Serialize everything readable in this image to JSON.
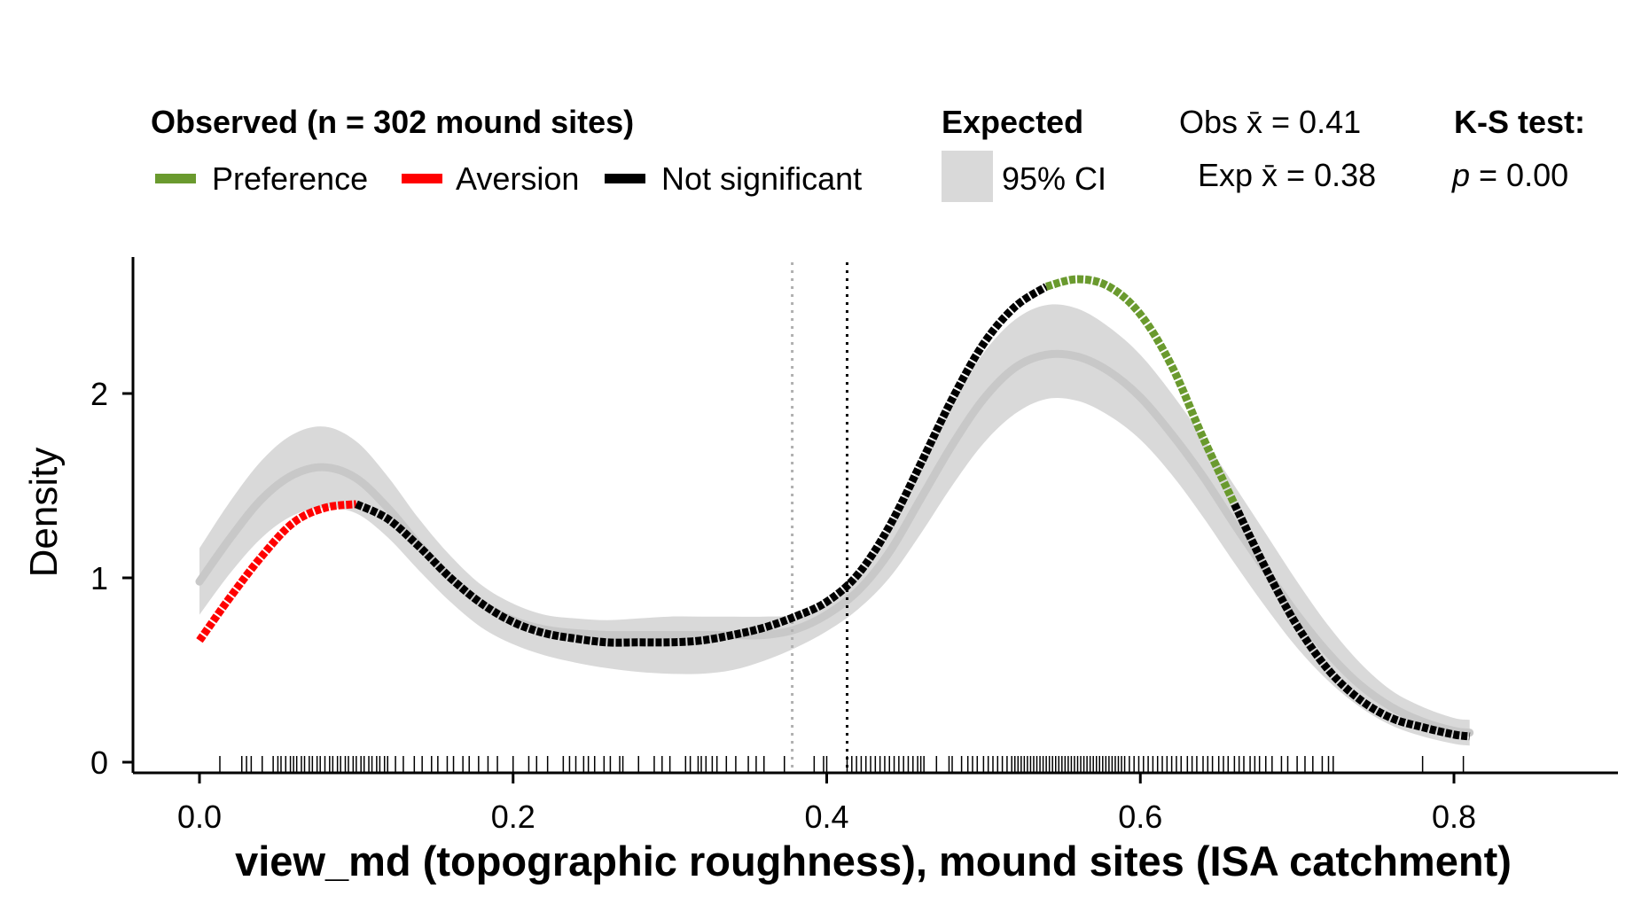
{
  "legend": {
    "observed_title": "Observed (n = 302 mound sites)",
    "observed_items": [
      {
        "label": "Preference",
        "color": "#6A9A2E"
      },
      {
        "label": "Aversion",
        "color": "#FF0000"
      },
      {
        "label": "Not significant",
        "color": "#000000"
      }
    ],
    "expected_title": "Expected",
    "expected_item": {
      "label": "95% CI",
      "color": "#D9D9D9"
    },
    "obs_mean_label": "Obs x̄ = 0.41",
    "exp_mean_label": "Exp x̄ = 0.38",
    "ks_title": "K-S test:",
    "ks_p_symbol": "p",
    "ks_p_value": " = 0.00"
  },
  "chart_data": {
    "type": "line",
    "xlabel": "view_md (topographic roughness), mound sites (ISA catchment)",
    "ylabel": "Density",
    "xlim": [
      -0.05,
      0.85
    ],
    "ylim": [
      -0.05,
      2.8
    ],
    "x_ticks": [
      0.0,
      0.2,
      0.4,
      0.6,
      0.8
    ],
    "x_tick_labels": [
      "0.0",
      "0.2",
      "0.4",
      "0.6",
      "0.8"
    ],
    "y_ticks": [
      0,
      1,
      2
    ],
    "y_tick_labels": [
      "0",
      "1",
      "2"
    ],
    "obs_mean": 0.413,
    "exp_mean": 0.378,
    "observed_density": {
      "x": [
        0.0,
        0.02,
        0.04,
        0.06,
        0.08,
        0.1,
        0.12,
        0.14,
        0.16,
        0.18,
        0.2,
        0.22,
        0.24,
        0.26,
        0.28,
        0.3,
        0.32,
        0.34,
        0.36,
        0.38,
        0.4,
        0.42,
        0.44,
        0.46,
        0.48,
        0.5,
        0.52,
        0.54,
        0.56,
        0.58,
        0.6,
        0.62,
        0.64,
        0.66,
        0.68,
        0.7,
        0.72,
        0.74,
        0.76,
        0.78,
        0.8,
        0.81
      ],
      "y": [
        0.66,
        0.9,
        1.12,
        1.3,
        1.38,
        1.4,
        1.32,
        1.17,
        1.0,
        0.86,
        0.76,
        0.7,
        0.67,
        0.65,
        0.65,
        0.65,
        0.66,
        0.69,
        0.73,
        0.79,
        0.87,
        1.02,
        1.28,
        1.62,
        1.97,
        2.27,
        2.47,
        2.58,
        2.62,
        2.58,
        2.43,
        2.15,
        1.76,
        1.4,
        1.05,
        0.74,
        0.5,
        0.34,
        0.24,
        0.19,
        0.15,
        0.14
      ],
      "significance": [
        "aversion",
        "aversion",
        "aversion",
        "aversion",
        "aversion",
        "not_significant",
        "not_significant",
        "not_significant",
        "not_significant",
        "not_significant",
        "not_significant",
        "not_significant",
        "not_significant",
        "not_significant",
        "not_significant",
        "not_significant",
        "not_significant",
        "not_significant",
        "not_significant",
        "not_significant",
        "not_significant",
        "not_significant",
        "not_significant",
        "not_significant",
        "not_significant",
        "not_significant",
        "not_significant",
        "preference",
        "preference",
        "preference",
        "preference",
        "preference",
        "preference",
        "not_significant",
        "not_significant",
        "not_significant",
        "not_significant",
        "not_significant",
        "not_significant",
        "not_significant",
        "not_significant",
        "not_significant"
      ]
    },
    "expected_density": {
      "x": [
        0.0,
        0.02,
        0.04,
        0.06,
        0.08,
        0.1,
        0.12,
        0.14,
        0.16,
        0.18,
        0.2,
        0.22,
        0.24,
        0.26,
        0.28,
        0.3,
        0.32,
        0.34,
        0.36,
        0.38,
        0.4,
        0.42,
        0.44,
        0.46,
        0.48,
        0.5,
        0.52,
        0.54,
        0.56,
        0.58,
        0.6,
        0.62,
        0.64,
        0.66,
        0.68,
        0.7,
        0.72,
        0.74,
        0.76,
        0.78,
        0.8,
        0.81
      ],
      "mean": [
        0.98,
        1.22,
        1.43,
        1.56,
        1.6,
        1.54,
        1.38,
        1.18,
        1.0,
        0.86,
        0.77,
        0.72,
        0.7,
        0.69,
        0.69,
        0.69,
        0.69,
        0.69,
        0.69,
        0.72,
        0.8,
        0.93,
        1.14,
        1.43,
        1.72,
        1.97,
        2.14,
        2.21,
        2.2,
        2.12,
        1.98,
        1.78,
        1.55,
        1.29,
        1.04,
        0.8,
        0.59,
        0.42,
        0.3,
        0.22,
        0.17,
        0.16
      ],
      "lower": [
        0.8,
        1.03,
        1.22,
        1.34,
        1.38,
        1.35,
        1.22,
        1.04,
        0.87,
        0.73,
        0.64,
        0.58,
        0.54,
        0.51,
        0.49,
        0.48,
        0.48,
        0.5,
        0.55,
        0.62,
        0.71,
        0.83,
        1.0,
        1.24,
        1.5,
        1.73,
        1.89,
        1.97,
        1.96,
        1.88,
        1.75,
        1.56,
        1.33,
        1.08,
        0.84,
        0.62,
        0.44,
        0.3,
        0.2,
        0.14,
        0.1,
        0.09
      ],
      "upper": [
        1.16,
        1.42,
        1.64,
        1.78,
        1.82,
        1.74,
        1.55,
        1.32,
        1.12,
        0.96,
        0.86,
        0.8,
        0.78,
        0.77,
        0.78,
        0.79,
        0.79,
        0.79,
        0.79,
        0.8,
        0.87,
        1.02,
        1.28,
        1.62,
        1.95,
        2.22,
        2.4,
        2.48,
        2.46,
        2.36,
        2.21,
        2.0,
        1.76,
        1.5,
        1.24,
        0.98,
        0.74,
        0.54,
        0.39,
        0.3,
        0.24,
        0.23
      ]
    },
    "rug": [
      0.013,
      0.027,
      0.03,
      0.033,
      0.04,
      0.047,
      0.05,
      0.052,
      0.055,
      0.058,
      0.06,
      0.062,
      0.065,
      0.067,
      0.07,
      0.072,
      0.075,
      0.077,
      0.08,
      0.083,
      0.085,
      0.088,
      0.09,
      0.093,
      0.095,
      0.098,
      0.1,
      0.103,
      0.105,
      0.108,
      0.11,
      0.113,
      0.115,
      0.118,
      0.12,
      0.125,
      0.13,
      0.137,
      0.142,
      0.148,
      0.152,
      0.158,
      0.162,
      0.168,
      0.172,
      0.178,
      0.184,
      0.19,
      0.2,
      0.21,
      0.215,
      0.222,
      0.232,
      0.236,
      0.24,
      0.245,
      0.248,
      0.252,
      0.258,
      0.262,
      0.268,
      0.27,
      0.28,
      0.29,
      0.295,
      0.3,
      0.31,
      0.313,
      0.318,
      0.32,
      0.323,
      0.327,
      0.33,
      0.336,
      0.342,
      0.35,
      0.355,
      0.36,
      0.373,
      0.392,
      0.398,
      0.4,
      0.413,
      0.416,
      0.419,
      0.422,
      0.425,
      0.428,
      0.431,
      0.434,
      0.437,
      0.44,
      0.443,
      0.446,
      0.449,
      0.452,
      0.455,
      0.458,
      0.46,
      0.462,
      0.47,
      0.478,
      0.48,
      0.486,
      0.49,
      0.493,
      0.496,
      0.5,
      0.503,
      0.506,
      0.509,
      0.512,
      0.515,
      0.518,
      0.52,
      0.522,
      0.524,
      0.526,
      0.528,
      0.53,
      0.532,
      0.534,
      0.536,
      0.538,
      0.54,
      0.542,
      0.544,
      0.546,
      0.548,
      0.55,
      0.552,
      0.554,
      0.556,
      0.558,
      0.56,
      0.562,
      0.564,
      0.566,
      0.568,
      0.57,
      0.572,
      0.574,
      0.576,
      0.578,
      0.58,
      0.582,
      0.584,
      0.586,
      0.588,
      0.59,
      0.593,
      0.596,
      0.599,
      0.602,
      0.605,
      0.608,
      0.611,
      0.614,
      0.617,
      0.62,
      0.623,
      0.626,
      0.63,
      0.633,
      0.636,
      0.64,
      0.643,
      0.646,
      0.65,
      0.653,
      0.656,
      0.66,
      0.663,
      0.666,
      0.67,
      0.673,
      0.676,
      0.68,
      0.684,
      0.69,
      0.694,
      0.7,
      0.705,
      0.71,
      0.716,
      0.72,
      0.723,
      0.78,
      0.806
    ]
  }
}
